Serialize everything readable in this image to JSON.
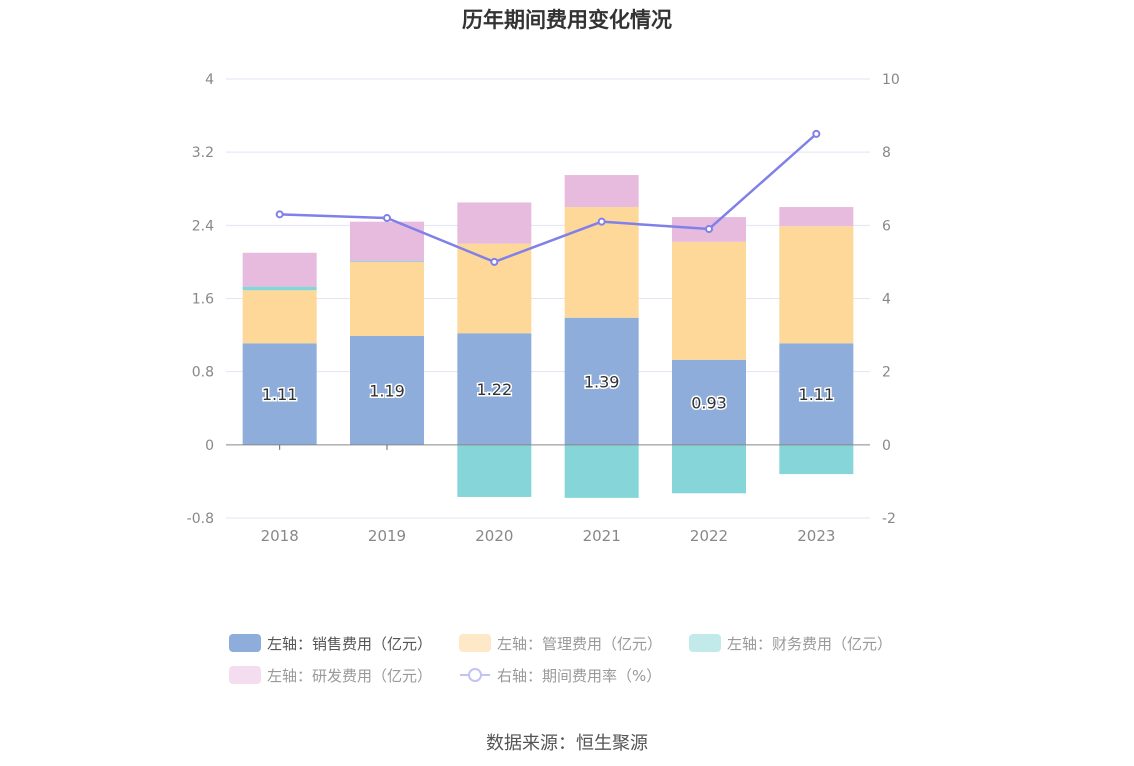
{
  "chart_data": {
    "type": "bar",
    "title": "历年期间费用变化情况",
    "categories": [
      "2018",
      "2019",
      "2020",
      "2021",
      "2022",
      "2023"
    ],
    "series": [
      {
        "name": "左轴：销售费用（亿元）",
        "kind": "bar",
        "axis": "left",
        "color": "#8eaddb",
        "values": [
          1.11,
          1.19,
          1.22,
          1.39,
          0.93,
          1.11
        ],
        "labels": [
          "1.11",
          "1.19",
          "1.22",
          "1.39",
          "0.93",
          "1.11"
        ]
      },
      {
        "name": "左轴：管理费用（亿元）",
        "kind": "bar",
        "axis": "left",
        "color": "#fed899",
        "values": [
          0.58,
          0.81,
          0.98,
          1.21,
          1.29,
          1.28
        ]
      },
      {
        "name": "左轴：财务费用（亿元）",
        "kind": "bar",
        "axis": "left",
        "color": "#86d6d9",
        "values": [
          0.04,
          0.01,
          -0.57,
          -0.58,
          -0.53,
          -0.32
        ]
      },
      {
        "name": "左轴：研发费用（亿元）",
        "kind": "bar",
        "axis": "left",
        "color": "#e7bbdd",
        "values": [
          0.37,
          0.43,
          0.45,
          0.35,
          0.27,
          0.21
        ]
      },
      {
        "name": "右轴：期间费用率（%）",
        "kind": "line",
        "axis": "right",
        "color": "#8080ea",
        "values": [
          6.3,
          6.2,
          5.0,
          6.1,
          5.9,
          8.5
        ]
      }
    ],
    "y_left": {
      "min": -0.8,
      "max": 4,
      "ticks": [
        "-0.8",
        "0",
        "0.8",
        "1.6",
        "2.4",
        "3.2",
        "4"
      ]
    },
    "y_right": {
      "min": -2,
      "max": 10,
      "ticks": [
        "-2",
        "0",
        "2",
        "4",
        "6",
        "8",
        "10"
      ]
    },
    "grid": true,
    "legend_position": "bottom"
  },
  "source": "数据来源：恒生聚源"
}
